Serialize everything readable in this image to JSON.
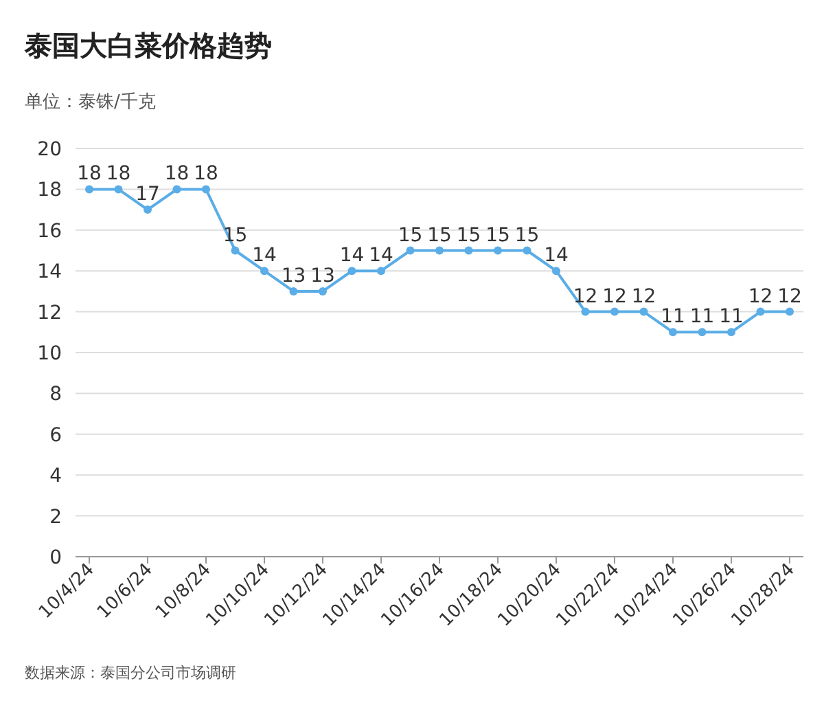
{
  "chart_data": {
    "type": "line",
    "title": "泰国大白菜价格趋势",
    "subtitle": "单位：泰铢/千克",
    "categories": [
      "10/4/24",
      null,
      "10/6/24",
      null,
      "10/8/24",
      null,
      "10/10/24",
      null,
      "10/12/24",
      null,
      "10/14/24",
      null,
      "10/16/24",
      null,
      "10/18/24",
      null,
      "10/20/24",
      null,
      "10/22/24",
      null,
      "10/24/24",
      null,
      "10/26/24",
      null,
      "10/28/24"
    ],
    "series": [
      {
        "color": "#5aade6",
        "values": [
          18,
          18,
          17,
          18,
          18,
          15,
          14,
          13,
          13,
          14,
          14,
          15,
          15,
          15,
          15,
          15,
          14,
          12,
          12,
          12,
          11,
          11,
          11,
          12,
          12
        ]
      }
    ],
    "ylim": [
      0,
      20
    ],
    "yticks": [
      0,
      2,
      4,
      6,
      8,
      10,
      12,
      14,
      16,
      18,
      20
    ],
    "grid": "y",
    "marker": "circle",
    "line_style": "solid",
    "data_labels": true,
    "annotations": [
      "数据来源：泰国分公司市场调研"
    ]
  }
}
